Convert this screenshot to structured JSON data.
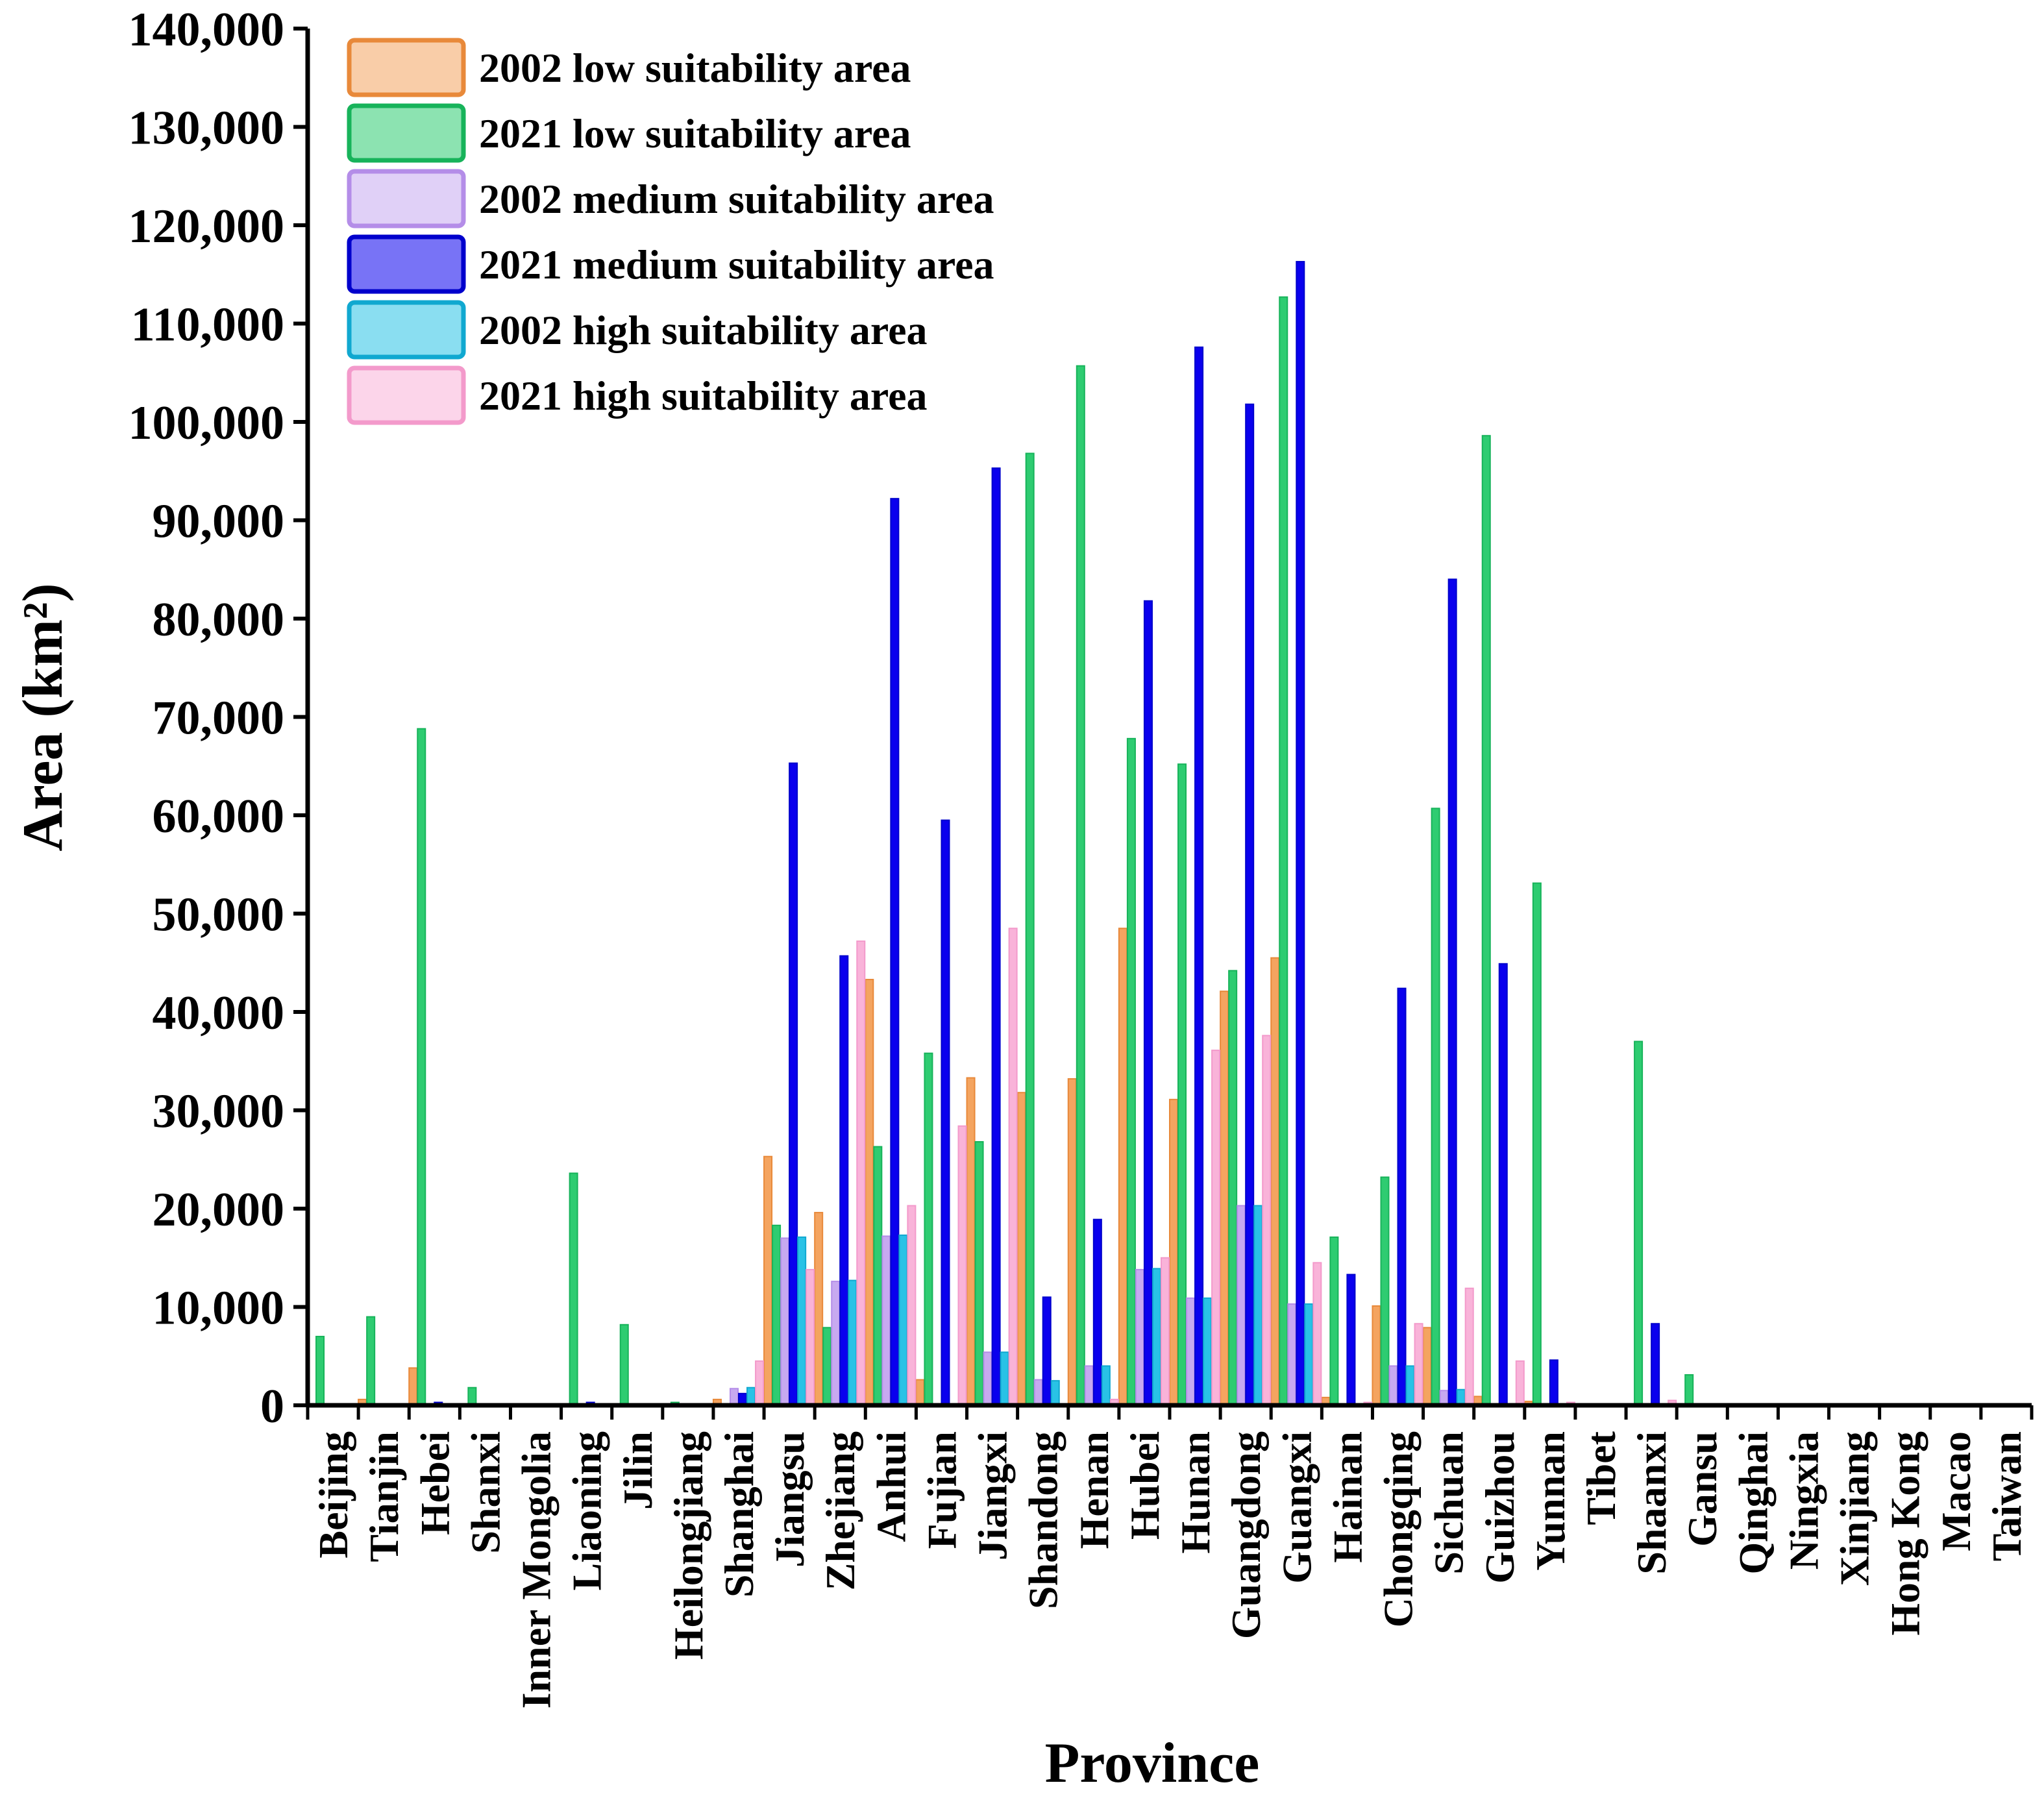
{
  "chart_data": {
    "type": "bar",
    "title": "",
    "xlabel": "Province",
    "ylabel": "Area (km²)",
    "ylim": [
      0,
      140000
    ],
    "yticks": [
      0,
      10000,
      20000,
      30000,
      40000,
      50000,
      60000,
      70000,
      80000,
      90000,
      100000,
      110000,
      120000,
      130000,
      140000
    ],
    "ytick_labels": [
      "0",
      "10,000",
      "20,000",
      "30,000",
      "40,000",
      "50,000",
      "60,000",
      "70,000",
      "80,000",
      "90,000",
      "100,000",
      "110,000",
      "120,000",
      "130,000",
      "140,000"
    ],
    "legend_position": "top-left",
    "categories": [
      "Beijing",
      "Tianjin",
      "Hebei",
      "Shanxi",
      "Inner Mongolia",
      "Liaoning",
      "Jilin",
      "Heilongjiang",
      "Shanghai",
      "Jiangsu",
      "Zhejiang",
      "Anhui",
      "Fujian",
      "Jiangxi",
      "Shandong",
      "Henan",
      "Hubei",
      "Hunan",
      "Guangdong",
      "Guangxi",
      "Hainan",
      "Chongqing",
      "Sichuan",
      "Guizhou",
      "Yunnan",
      "Tibet",
      "Shaanxi",
      "Gansu",
      "Qinghai",
      "Ningxia",
      "Xinjiang",
      "Hong Kong",
      "Macao",
      "Taiwan"
    ],
    "series": [
      {
        "name": "2002 low suitability area",
        "fill": "#f4a460",
        "edge": "#e8893a",
        "values": [
          0,
          600,
          3800,
          0,
          0,
          0,
          0,
          0,
          600,
          25300,
          19600,
          43300,
          2600,
          33300,
          31800,
          33200,
          48500,
          31100,
          42100,
          45500,
          800,
          10100,
          7900,
          900,
          400,
          0,
          0,
          0,
          0,
          0,
          0,
          0,
          0,
          0
        ]
      },
      {
        "name": "2021 low suitability area",
        "fill": "#2ecc71",
        "edge": "#17b35a",
        "values": [
          7000,
          9000,
          68800,
          1800,
          0,
          23600,
          8200,
          300,
          0,
          18300,
          7900,
          26300,
          35800,
          26800,
          96800,
          105700,
          67800,
          65200,
          44200,
          112700,
          17100,
          23200,
          60700,
          98600,
          53100,
          0,
          37000,
          3100,
          0,
          0,
          0,
          0,
          0,
          0
        ]
      },
      {
        "name": "2002 medium suitability area",
        "fill": "#c7a9f0",
        "edge": "#b48de8",
        "values": [
          0,
          0,
          0,
          0,
          0,
          0,
          0,
          0,
          1700,
          17000,
          12600,
          17200,
          0,
          5400,
          2600,
          4000,
          13800,
          10900,
          20300,
          10300,
          0,
          4000,
          1500,
          0,
          0,
          0,
          0,
          0,
          0,
          0,
          0,
          0,
          0,
          0
        ]
      },
      {
        "name": "2021 medium suitability area",
        "fill": "#0a00ee",
        "edge": "#0000cc",
        "values": [
          0,
          0,
          300,
          0,
          0,
          300,
          0,
          0,
          1200,
          65300,
          45700,
          92200,
          59500,
          95300,
          11000,
          18900,
          81800,
          107600,
          101800,
          116300,
          13300,
          42400,
          84000,
          44900,
          4600,
          0,
          8300,
          0,
          0,
          0,
          0,
          0,
          0,
          0
        ]
      },
      {
        "name": "2002 high suitability area",
        "fill": "#29c2e6",
        "edge": "#10a8d0",
        "values": [
          0,
          0,
          0,
          0,
          0,
          0,
          0,
          0,
          1800,
          17100,
          12700,
          17300,
          0,
          5400,
          2500,
          4000,
          13900,
          10900,
          20300,
          10300,
          0,
          4000,
          1600,
          0,
          0,
          0,
          0,
          0,
          0,
          0,
          0,
          0,
          0,
          0
        ]
      },
      {
        "name": "2021 high suitability area",
        "fill": "#f9b3d9",
        "edge": "#f39acb",
        "values": [
          0,
          0,
          0,
          0,
          0,
          0,
          0,
          0,
          4500,
          13800,
          47200,
          20300,
          28400,
          48500,
          0,
          600,
          15000,
          36100,
          37600,
          14500,
          300,
          8300,
          11900,
          4500,
          300,
          0,
          500,
          0,
          0,
          0,
          0,
          0,
          0,
          0
        ]
      }
    ]
  }
}
